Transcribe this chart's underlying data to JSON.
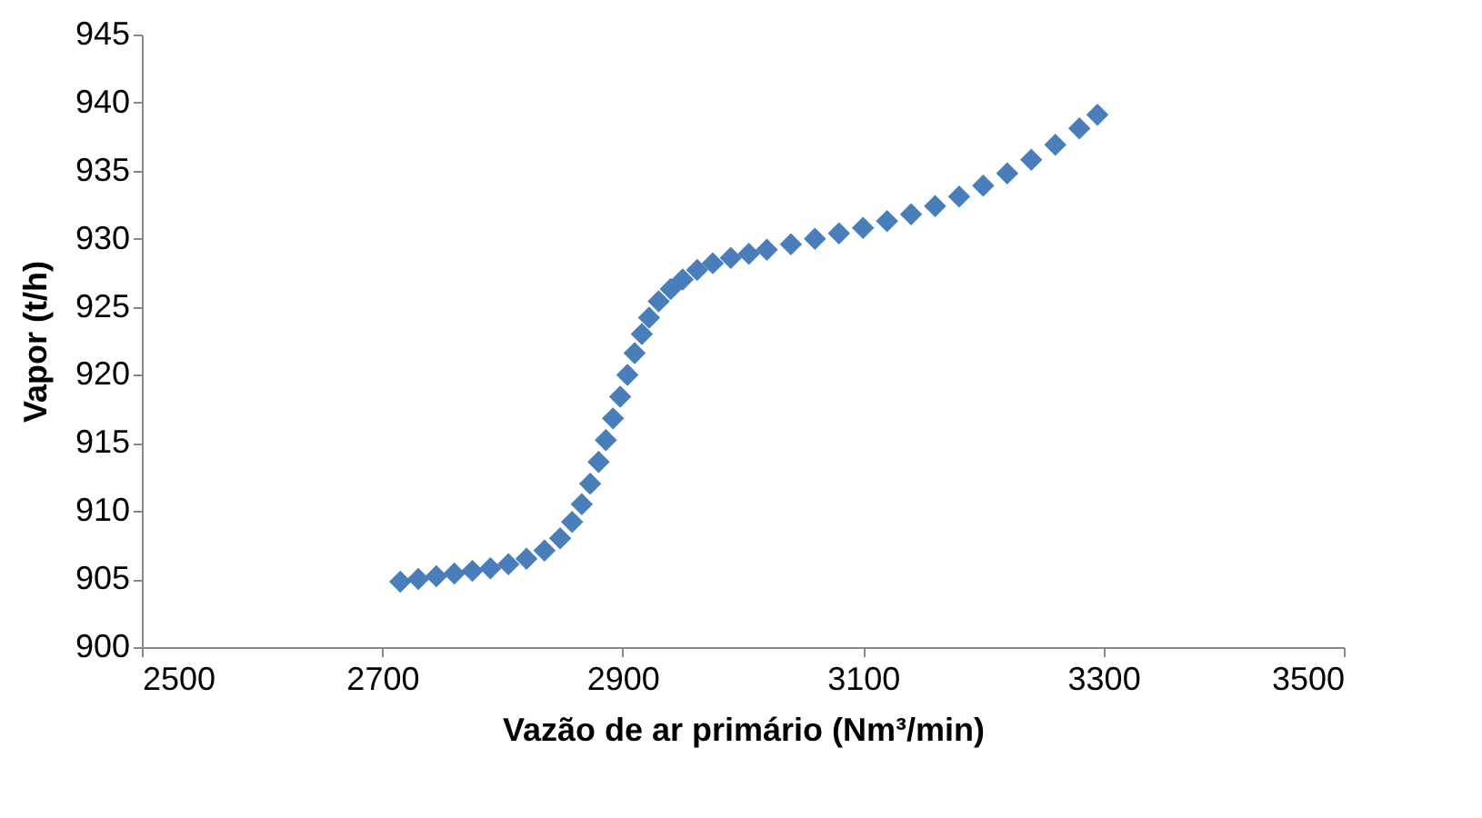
{
  "chart_data": {
    "type": "scatter",
    "xlabel": "Vazão de ar primário (Nm³/min)",
    "ylabel": "Vapor (t/h)",
    "x": [
      2715,
      2730,
      2745,
      2760,
      2775,
      2790,
      2805,
      2820,
      2835,
      2848,
      2858,
      2866,
      2873,
      2880,
      2886,
      2892,
      2898,
      2904,
      2910,
      2916,
      2922,
      2930,
      2940,
      2950,
      2962,
      2975,
      2990,
      3005,
      3020,
      3040,
      3060,
      3080,
      3100,
      3120,
      3140,
      3160,
      3180,
      3200,
      3220,
      3240,
      3260,
      3280,
      3295
    ],
    "series": [
      {
        "color": "#4a7ebb",
        "values": [
          904.8,
          905.0,
          905.2,
          905.4,
          905.6,
          905.8,
          906.1,
          906.5,
          907.1,
          908.0,
          909.2,
          910.5,
          912.0,
          913.6,
          915.2,
          916.8,
          918.4,
          920.0,
          921.6,
          923.0,
          924.2,
          925.4,
          926.3,
          927.0,
          927.7,
          928.2,
          928.6,
          928.9,
          929.2,
          929.6,
          930.0,
          930.4,
          930.8,
          931.3,
          931.8,
          932.4,
          933.1,
          933.9,
          934.8,
          935.8,
          936.9,
          938.1,
          939.1
        ]
      }
    ],
    "xlim": [
      2500,
      3500
    ],
    "xticks": [
      2500,
      2700,
      2900,
      3100,
      3300,
      3500
    ],
    "ylim": [
      900,
      945
    ],
    "yticks": [
      900,
      905,
      910,
      915,
      920,
      925,
      930,
      935,
      940,
      945
    ],
    "grid": false,
    "legend": false,
    "marker": "diamond"
  }
}
